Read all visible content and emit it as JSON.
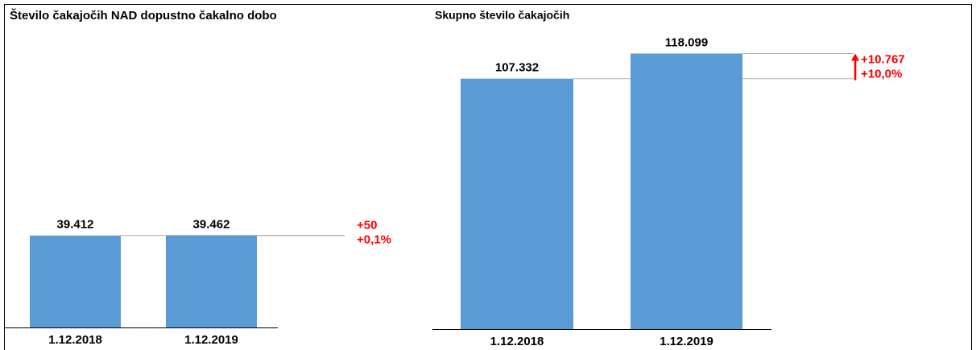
{
  "chart_data": [
    {
      "type": "bar",
      "title": "Število čakajočih NAD dopustno čakalno dobo",
      "categories": [
        "1.12.2018",
        "1.12.2019"
      ],
      "values": [
        39412,
        39462
      ],
      "value_labels": [
        "39.412",
        "39.462"
      ],
      "color": "#5b9bd5",
      "ylim": [
        0,
        140000
      ],
      "annotations": [
        "+50",
        "+0,1%"
      ],
      "annotation_color": "#ff0000"
    },
    {
      "type": "bar",
      "title": "Skupno število čakajočih",
      "categories": [
        "1.12.2018",
        "1.12.2019"
      ],
      "values": [
        107332,
        118099
      ],
      "value_labels": [
        "107.332",
        "118.099"
      ],
      "color": "#5b9bd5",
      "ylim": [
        0,
        140000
      ],
      "annotations": [
        "+10.767",
        "+10,0%"
      ],
      "annotation_color": "#ff0000"
    }
  ]
}
